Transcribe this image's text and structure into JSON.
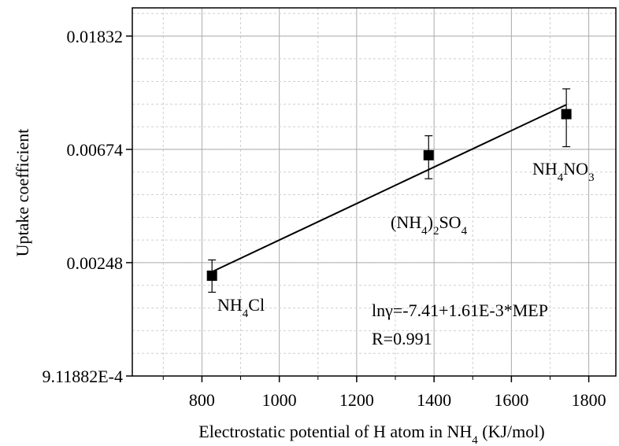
{
  "chart_data": {
    "type": "scatter",
    "xlabel": "Electrostatic potential of H atom in NH",
    "xlabel_sub": "4",
    "xlabel_tail": " (KJ/mol)",
    "ylabel": "Uptake coefficient",
    "xlim": [
      620,
      1870
    ],
    "ylim": [
      0.000911882,
      0.0235
    ],
    "y_scale": "log",
    "x_ticks": [
      800,
      1000,
      1200,
      1400,
      1600,
      1800
    ],
    "x_tick_labels": [
      "800",
      "1000",
      "1200",
      "1400",
      "1600",
      "1800"
    ],
    "y_ticks": [
      0.000911882,
      0.00248,
      0.00674,
      0.01832
    ],
    "y_tick_labels": [
      "9.11882E-4",
      "0.00248",
      "0.00674",
      "0.01832"
    ],
    "grid": true,
    "series": [
      {
        "points": [
          {
            "x": 826,
            "y": 0.00221,
            "err_low": 0.00191,
            "err_high": 0.00254
          },
          {
            "x": 1386,
            "y": 0.0064,
            "err_low": 0.0052,
            "err_high": 0.0076
          },
          {
            "x": 1742,
            "y": 0.0092,
            "err_low": 0.0069,
            "err_high": 0.0115
          }
        ]
      }
    ],
    "fit_line": {
      "intercept": -7.41,
      "slope": 0.00161,
      "x_range": [
        826,
        1742
      ]
    },
    "point_labels": [
      {
        "main": "NH",
        "sub": "4",
        "tail": "Cl"
      },
      {
        "main": "(NH",
        "sub": "4",
        "tail": ")",
        "sub2": "2",
        "tail2": "SO",
        "sub3": "4"
      },
      {
        "main": "NH",
        "sub": "4",
        "tail": "NO",
        "sub2": "3"
      }
    ],
    "annotations": [
      "lnγ=-7.41+1.61E-3*MEP",
      "R=0.991"
    ]
  }
}
